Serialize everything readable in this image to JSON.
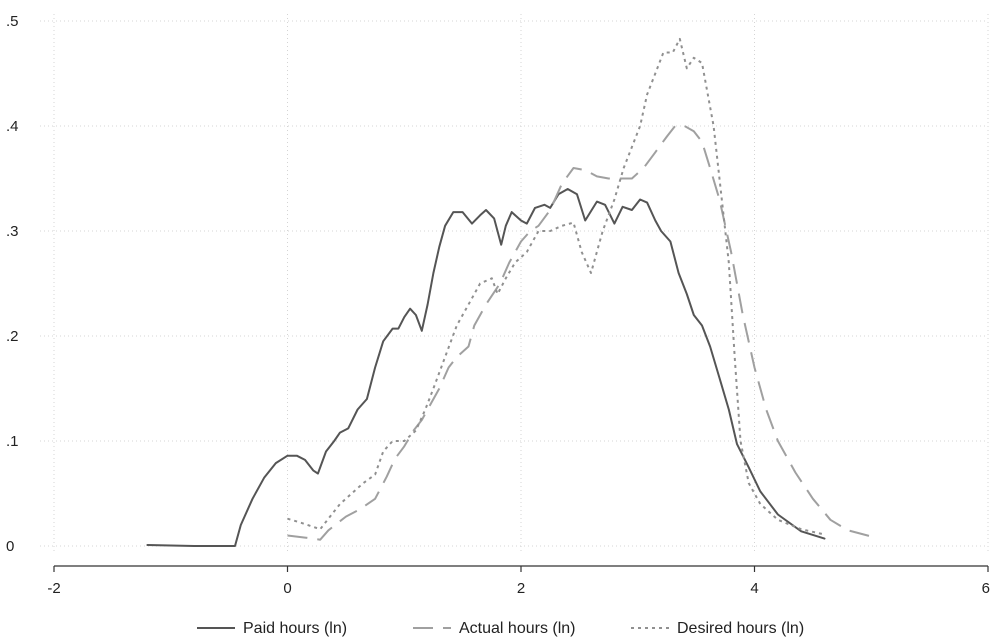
{
  "chart_data": {
    "type": "line",
    "title": "",
    "xlabel": "",
    "ylabel": "",
    "xlim": [
      -2,
      6
    ],
    "ylim": [
      0,
      0.5
    ],
    "grid": true,
    "legend_position": "bottom",
    "x_ticks": [
      {
        "value": -2,
        "label": "-2"
      },
      {
        "value": 0,
        "label": "0"
      },
      {
        "value": 2,
        "label": "2"
      },
      {
        "value": 4,
        "label": "4"
      },
      {
        "value": 6,
        "label": "6"
      }
    ],
    "y_ticks": [
      {
        "value": 0,
        "label": "0"
      },
      {
        "value": 0.1,
        "label": ".1"
      },
      {
        "value": 0.2,
        "label": ".2"
      },
      {
        "value": 0.3,
        "label": ".3"
      },
      {
        "value": 0.4,
        "label": ".4"
      },
      {
        "value": 0.5,
        "label": ".5"
      }
    ],
    "series": [
      {
        "name": "Paid hours (ln)",
        "color": "#555555",
        "dash": "solid",
        "points": [
          [
            -1.2,
            0.001
          ],
          [
            -0.8,
            0.0
          ],
          [
            -0.45,
            0.0
          ],
          [
            -0.4,
            0.02
          ],
          [
            -0.3,
            0.045
          ],
          [
            -0.2,
            0.065
          ],
          [
            -0.1,
            0.079
          ],
          [
            0.0,
            0.086
          ],
          [
            0.08,
            0.086
          ],
          [
            0.15,
            0.082
          ],
          [
            0.22,
            0.072
          ],
          [
            0.26,
            0.069
          ],
          [
            0.33,
            0.09
          ],
          [
            0.4,
            0.1
          ],
          [
            0.45,
            0.108
          ],
          [
            0.52,
            0.112
          ],
          [
            0.6,
            0.13
          ],
          [
            0.68,
            0.14
          ],
          [
            0.75,
            0.17
          ],
          [
            0.82,
            0.195
          ],
          [
            0.9,
            0.207
          ],
          [
            0.95,
            0.207
          ],
          [
            1.0,
            0.218
          ],
          [
            1.05,
            0.226
          ],
          [
            1.1,
            0.22
          ],
          [
            1.15,
            0.205
          ],
          [
            1.2,
            0.23
          ],
          [
            1.25,
            0.26
          ],
          [
            1.3,
            0.285
          ],
          [
            1.35,
            0.305
          ],
          [
            1.42,
            0.318
          ],
          [
            1.5,
            0.318
          ],
          [
            1.58,
            0.307
          ],
          [
            1.65,
            0.315
          ],
          [
            1.7,
            0.32
          ],
          [
            1.77,
            0.312
          ],
          [
            1.83,
            0.287
          ],
          [
            1.87,
            0.305
          ],
          [
            1.92,
            0.318
          ],
          [
            2.0,
            0.31
          ],
          [
            2.05,
            0.307
          ],
          [
            2.12,
            0.322
          ],
          [
            2.2,
            0.325
          ],
          [
            2.25,
            0.322
          ],
          [
            2.32,
            0.335
          ],
          [
            2.4,
            0.34
          ],
          [
            2.48,
            0.335
          ],
          [
            2.55,
            0.31
          ],
          [
            2.65,
            0.328
          ],
          [
            2.72,
            0.325
          ],
          [
            2.8,
            0.307
          ],
          [
            2.87,
            0.323
          ],
          [
            2.95,
            0.32
          ],
          [
            3.02,
            0.33
          ],
          [
            3.08,
            0.327
          ],
          [
            3.15,
            0.31
          ],
          [
            3.2,
            0.3
          ],
          [
            3.28,
            0.29
          ],
          [
            3.35,
            0.26
          ],
          [
            3.42,
            0.24
          ],
          [
            3.48,
            0.22
          ],
          [
            3.55,
            0.21
          ],
          [
            3.62,
            0.19
          ],
          [
            3.7,
            0.16
          ],
          [
            3.78,
            0.13
          ],
          [
            3.85,
            0.097
          ],
          [
            3.95,
            0.075
          ],
          [
            4.05,
            0.052
          ],
          [
            4.2,
            0.03
          ],
          [
            4.4,
            0.014
          ],
          [
            4.6,
            0.007
          ]
        ]
      },
      {
        "name": "Actual hours (ln)",
        "color": "#a0a0a0",
        "dash": "20 10",
        "points": [
          [
            0.0,
            0.01
          ],
          [
            0.15,
            0.008
          ],
          [
            0.28,
            0.006
          ],
          [
            0.35,
            0.015
          ],
          [
            0.5,
            0.028
          ],
          [
            0.62,
            0.035
          ],
          [
            0.75,
            0.045
          ],
          [
            0.85,
            0.066
          ],
          [
            0.92,
            0.083
          ],
          [
            1.0,
            0.095
          ],
          [
            1.08,
            0.11
          ],
          [
            1.15,
            0.12
          ],
          [
            1.2,
            0.13
          ],
          [
            1.3,
            0.15
          ],
          [
            1.38,
            0.17
          ],
          [
            1.45,
            0.18
          ],
          [
            1.55,
            0.19
          ],
          [
            1.6,
            0.21
          ],
          [
            1.7,
            0.23
          ],
          [
            1.82,
            0.25
          ],
          [
            1.9,
            0.27
          ],
          [
            2.0,
            0.29
          ],
          [
            2.08,
            0.3
          ],
          [
            2.15,
            0.305
          ],
          [
            2.25,
            0.32
          ],
          [
            2.35,
            0.345
          ],
          [
            2.45,
            0.36
          ],
          [
            2.55,
            0.358
          ],
          [
            2.65,
            0.352
          ],
          [
            2.75,
            0.35
          ],
          [
            2.85,
            0.35
          ],
          [
            2.95,
            0.35
          ],
          [
            3.05,
            0.36
          ],
          [
            3.15,
            0.375
          ],
          [
            3.25,
            0.39
          ],
          [
            3.32,
            0.4
          ],
          [
            3.4,
            0.4
          ],
          [
            3.48,
            0.395
          ],
          [
            3.55,
            0.385
          ],
          [
            3.62,
            0.36
          ],
          [
            3.7,
            0.33
          ],
          [
            3.8,
            0.28
          ],
          [
            3.9,
            0.22
          ],
          [
            4.0,
            0.17
          ],
          [
            4.1,
            0.13
          ],
          [
            4.2,
            0.1
          ],
          [
            4.35,
            0.07
          ],
          [
            4.5,
            0.045
          ],
          [
            4.65,
            0.025
          ],
          [
            4.8,
            0.015
          ],
          [
            5.0,
            0.009
          ]
        ]
      },
      {
        "name": "Desired hours (ln)",
        "color": "#909090",
        "dash": "3 4",
        "points": [
          [
            0.0,
            0.026
          ],
          [
            0.12,
            0.022
          ],
          [
            0.28,
            0.016
          ],
          [
            0.35,
            0.026
          ],
          [
            0.45,
            0.04
          ],
          [
            0.55,
            0.05
          ],
          [
            0.65,
            0.06
          ],
          [
            0.75,
            0.068
          ],
          [
            0.82,
            0.09
          ],
          [
            0.9,
            0.1
          ],
          [
            1.0,
            0.1
          ],
          [
            1.1,
            0.11
          ],
          [
            1.18,
            0.13
          ],
          [
            1.25,
            0.15
          ],
          [
            1.35,
            0.18
          ],
          [
            1.45,
            0.21
          ],
          [
            1.55,
            0.23
          ],
          [
            1.65,
            0.25
          ],
          [
            1.75,
            0.255
          ],
          [
            1.8,
            0.24
          ],
          [
            1.87,
            0.255
          ],
          [
            1.95,
            0.27
          ],
          [
            2.05,
            0.28
          ],
          [
            2.15,
            0.3
          ],
          [
            2.25,
            0.3
          ],
          [
            2.35,
            0.305
          ],
          [
            2.45,
            0.308
          ],
          [
            2.52,
            0.28
          ],
          [
            2.6,
            0.26
          ],
          [
            2.7,
            0.3
          ],
          [
            2.8,
            0.33
          ],
          [
            2.88,
            0.36
          ],
          [
            2.95,
            0.38
          ],
          [
            3.02,
            0.4
          ],
          [
            3.08,
            0.43
          ],
          [
            3.15,
            0.45
          ],
          [
            3.22,
            0.47
          ],
          [
            3.3,
            0.47
          ],
          [
            3.36,
            0.483
          ],
          [
            3.42,
            0.455
          ],
          [
            3.48,
            0.465
          ],
          [
            3.55,
            0.46
          ],
          [
            3.6,
            0.43
          ],
          [
            3.65,
            0.4
          ],
          [
            3.72,
            0.33
          ],
          [
            3.78,
            0.27
          ],
          [
            3.83,
            0.18
          ],
          [
            3.88,
            0.1
          ],
          [
            3.95,
            0.06
          ],
          [
            4.05,
            0.04
          ],
          [
            4.2,
            0.025
          ],
          [
            4.4,
            0.016
          ],
          [
            4.6,
            0.011
          ]
        ]
      }
    ]
  }
}
